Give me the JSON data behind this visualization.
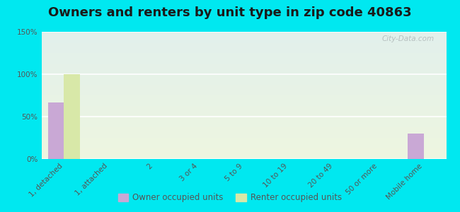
{
  "title": "Owners and renters by unit type in zip code 40863",
  "categories": [
    "1, detached",
    "1, attached",
    "2",
    "3 or 4",
    "5 to 9",
    "10 to 19",
    "20 to 49",
    "50 or more",
    "Mobile home"
  ],
  "owner_values": [
    67,
    0,
    0,
    0,
    0,
    0,
    0,
    0,
    30
  ],
  "renter_values": [
    100,
    0,
    0,
    0,
    0,
    0,
    0,
    0,
    0
  ],
  "owner_color": "#c9a8d5",
  "renter_color": "#d8e8a8",
  "background_color": "#00e8f0",
  "plot_bg_top": "#e2f0ec",
  "plot_bg_bottom": "#eef6e0",
  "ylim": [
    0,
    150
  ],
  "yticks": [
    0,
    50,
    100,
    150
  ],
  "ytick_labels": [
    "0%",
    "50%",
    "100%",
    "150%"
  ],
  "bar_width": 0.35,
  "legend_owner": "Owner occupied units",
  "legend_renter": "Renter occupied units",
  "watermark": "City-Data.com",
  "title_fontsize": 13,
  "tick_fontsize": 7.5,
  "legend_fontsize": 8.5
}
